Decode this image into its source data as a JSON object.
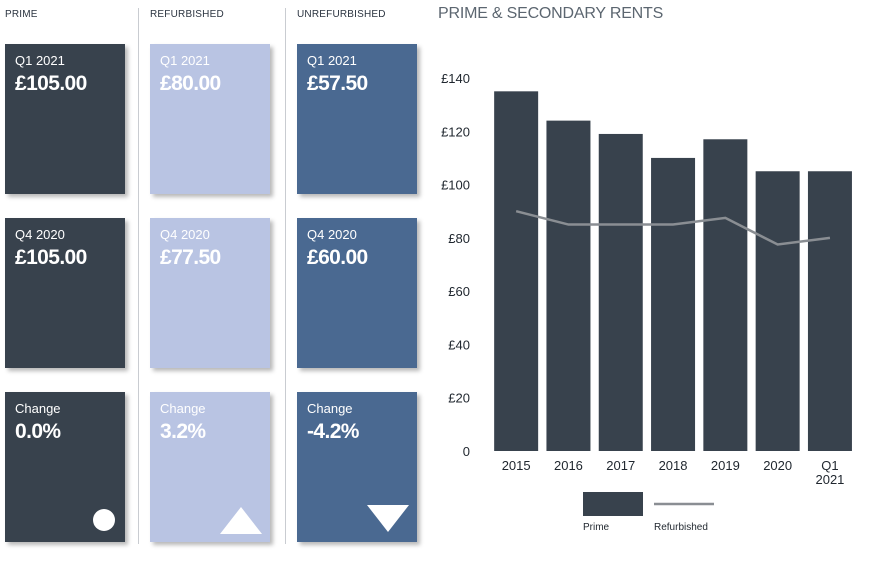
{
  "columns": [
    {
      "key": "prime",
      "heading": "PRIME",
      "cards": [
        {
          "label": "Q1 2021",
          "value": "£105.00"
        },
        {
          "label": "Q4 2020",
          "value": "£105.00"
        },
        {
          "label": "Change",
          "value": "0.0%",
          "indicator": "circle-icon"
        }
      ]
    },
    {
      "key": "refurbished",
      "heading": "REFURBISHED",
      "cards": [
        {
          "label": "Q1 2021",
          "value": "£80.00"
        },
        {
          "label": "Q4 2020",
          "value": "£77.50"
        },
        {
          "label": "Change",
          "value": "3.2%",
          "indicator": "triangle-up-icon"
        }
      ]
    },
    {
      "key": "unrefurbished",
      "heading": "UNREFURBISHED",
      "cards": [
        {
          "label": "Q1 2021",
          "value": "£57.50"
        },
        {
          "label": "Q4 2020",
          "value": "£60.00"
        },
        {
          "label": "Change",
          "value": "-4.2%",
          "indicator": "triangle-down-icon"
        }
      ]
    }
  ],
  "colors": {
    "prime": "#38424d",
    "refurbished": "#b9c4e3",
    "unrefurbished": "#4a6991",
    "line": "#8a8e93"
  },
  "chart_data": {
    "type": "bar",
    "title": "PRIME & SECONDARY RENTS",
    "categories": [
      "2015",
      "2016",
      "2017",
      "2018",
      "2019",
      "2020",
      "Q1\n2021"
    ],
    "series": [
      {
        "name": "Prime",
        "type": "bar",
        "values": [
          135,
          124,
          119,
          110,
          117,
          105,
          105
        ]
      },
      {
        "name": "Refurbished",
        "type": "line",
        "values": [
          90,
          85,
          85,
          85,
          87.5,
          77.5,
          80
        ]
      }
    ],
    "yticks": [
      "£140",
      "£120",
      "£100",
      "£80",
      "£60",
      "£40",
      "£20",
      "0"
    ],
    "ylim": [
      0,
      140
    ],
    "xlabel": "",
    "ylabel": "",
    "legend": [
      {
        "label": "Prime"
      },
      {
        "label": "Refurbished"
      }
    ],
    "legend_position": "bottom"
  }
}
